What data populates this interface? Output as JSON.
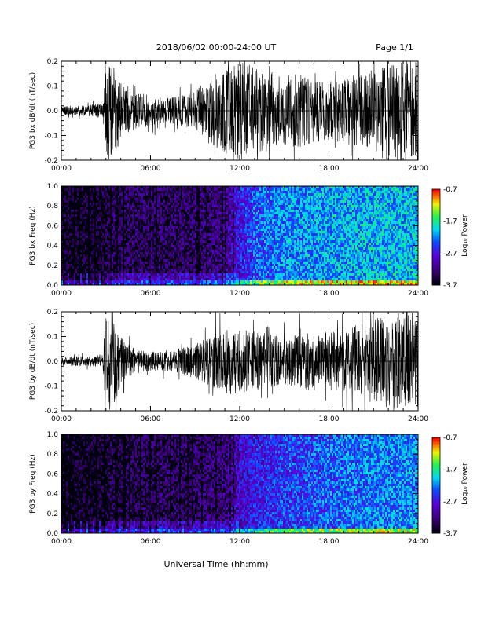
{
  "header": {
    "title": "2018/06/02  00:00-24:00 UT",
    "page": "Page 1/1"
  },
  "xlabel": "Universal Time (hh:mm)",
  "colorbar": {
    "label": "Log₁₀ Power",
    "ticks": [
      "-0.7",
      "-1.7",
      "-2.7",
      "-3.7"
    ],
    "range": [
      -3.7,
      -0.7
    ]
  },
  "chart_data": [
    {
      "type": "line",
      "ylabel": "PG3 bx dB/dt (nT/sec)",
      "x_ticks": [
        "00:00",
        "06:00",
        "12:00",
        "18:00",
        "24:00"
      ],
      "y_ticks": [
        "0.2",
        "0.1",
        "0.0",
        "-0.1",
        "-0.2"
      ],
      "xlim": [
        0,
        24
      ],
      "ylim": [
        -0.2,
        0.2
      ],
      "envelope": {
        "x": [
          0,
          1,
          2,
          2.8,
          3.0,
          3.4,
          4,
          5,
          6,
          7,
          8,
          9,
          10,
          11,
          12,
          13,
          14,
          15,
          16,
          17,
          18,
          19,
          20,
          21,
          22,
          23,
          24
        ],
        "amplitude": [
          0.02,
          0.02,
          0.025,
          0.03,
          0.2,
          0.2,
          0.12,
          0.08,
          0.06,
          0.05,
          0.06,
          0.08,
          0.14,
          0.17,
          0.2,
          0.18,
          0.16,
          0.14,
          0.15,
          0.13,
          0.12,
          0.13,
          0.15,
          0.18,
          0.2,
          0.2,
          0.2
        ]
      }
    },
    {
      "type": "heatmap",
      "ylabel": "PG3 bx Freq (Hz)",
      "x_ticks": [
        "00:00",
        "06:00",
        "12:00",
        "18:00",
        "24:00"
      ],
      "y_ticks": [
        "1.0",
        "0.8",
        "0.6",
        "0.4",
        "0.2",
        "0.0"
      ],
      "xlim": [
        0,
        24
      ],
      "ylim": [
        0,
        1.0
      ],
      "zlim": [
        -3.7,
        -0.7
      ],
      "mean_log_power": {
        "x": [
          0,
          3,
          3.4,
          6,
          9,
          11,
          12,
          13,
          15,
          18,
          21,
          24
        ],
        "z": [
          -3.7,
          -3.6,
          -3.45,
          -3.4,
          -3.4,
          -3.2,
          -2.7,
          -2.4,
          -2.2,
          -2.1,
          -2.05,
          -2.0
        ]
      }
    },
    {
      "type": "line",
      "ylabel": "PG3 by dB/dt (nT/sec)",
      "x_ticks": [
        "00:00",
        "06:00",
        "12:00",
        "18:00",
        "24:00"
      ],
      "y_ticks": [
        "0.2",
        "0.1",
        "0.0",
        "-0.1",
        "-0.2"
      ],
      "xlim": [
        0,
        24
      ],
      "ylim": [
        -0.2,
        0.2
      ],
      "envelope": {
        "x": [
          0,
          1,
          2,
          2.8,
          3.0,
          3.4,
          4,
          5,
          6,
          7,
          8,
          9,
          10,
          11,
          12,
          13,
          14,
          15,
          16,
          17,
          18,
          19,
          20,
          21,
          22,
          23,
          24
        ],
        "amplitude": [
          0.015,
          0.02,
          0.02,
          0.03,
          0.2,
          0.2,
          0.1,
          0.05,
          0.04,
          0.04,
          0.05,
          0.07,
          0.1,
          0.14,
          0.13,
          0.12,
          0.11,
          0.1,
          0.11,
          0.12,
          0.12,
          0.13,
          0.15,
          0.17,
          0.19,
          0.2,
          0.2
        ]
      }
    },
    {
      "type": "heatmap",
      "ylabel": "PG3 by Freq (Hz)",
      "x_ticks": [
        "00:00",
        "06:00",
        "12:00",
        "18:00",
        "24:00"
      ],
      "y_ticks": [
        "1.0",
        "0.8",
        "0.6",
        "0.4",
        "0.2",
        "0.0"
      ],
      "xlim": [
        0,
        24
      ],
      "ylim": [
        0,
        1.0
      ],
      "zlim": [
        -3.7,
        -0.7
      ],
      "mean_log_power": {
        "x": [
          0,
          3,
          3.4,
          6,
          9,
          11,
          12,
          13,
          15,
          18,
          21,
          24
        ],
        "z": [
          -3.7,
          -3.65,
          -3.5,
          -3.45,
          -3.4,
          -3.3,
          -2.9,
          -2.7,
          -2.5,
          -2.35,
          -2.25,
          -2.2
        ]
      }
    }
  ]
}
